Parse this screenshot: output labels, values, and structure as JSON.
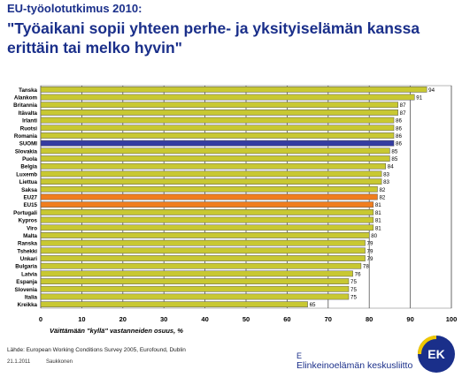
{
  "header": {
    "suptitle": "EU-työolotutkimus 2010:",
    "title": "\"Työaikani sopii yhteen perhe- ja yksityiselämän kanssa erittäin tai melko hyvin\""
  },
  "footer": {
    "source": "Lähde: European Working Conditions Survey 2005, Eurofound, Dublin",
    "date": "21.1.2011",
    "author": "Saukkonen",
    "org_mark": "E",
    "org_name": "Elinkeinoelämän keskusliitto",
    "logo_text": "EK"
  },
  "colors": {
    "default_bar": "#c8c832",
    "suomi_bar": "#343ca0",
    "eu_bar": "#f07d1e",
    "background": "#ffffff",
    "title": "#1a2f8a"
  },
  "chart_data": {
    "type": "bar",
    "orientation": "horizontal",
    "xlabel": "Väittämään \"kyllä\" vastanneiden osuus, %",
    "xlim": [
      0,
      100
    ],
    "xticks": [
      0,
      10,
      20,
      30,
      40,
      50,
      60,
      70,
      80,
      90,
      100
    ],
    "grid": true,
    "categories": [
      "Tanska",
      "Alankom",
      "Britannia",
      "Itävalta",
      "Irlanti",
      "Ruotsi",
      "Romania",
      "SUOMI",
      "Slovakia",
      "Puola",
      "Belgia",
      "Luxemb",
      "Liettua",
      "Saksa",
      "EU27",
      "EU15",
      "Portugali",
      "Kypros",
      "Viro",
      "Malta",
      "Ranska",
      "Tshekki",
      "Unkari",
      "Bulgaria",
      "Latvia",
      "Espanja",
      "Slovenia",
      "Italia",
      "Kreikka"
    ],
    "values": [
      94,
      91,
      87,
      87,
      86,
      86,
      86,
      86,
      85,
      85,
      84,
      83,
      83,
      82,
      82,
      81,
      81,
      81,
      81,
      80,
      79,
      79,
      79,
      78,
      76,
      75,
      75,
      75,
      65
    ],
    "highlight": {
      "SUOMI": "suomi",
      "EU27": "eu",
      "EU15": "eu"
    }
  }
}
